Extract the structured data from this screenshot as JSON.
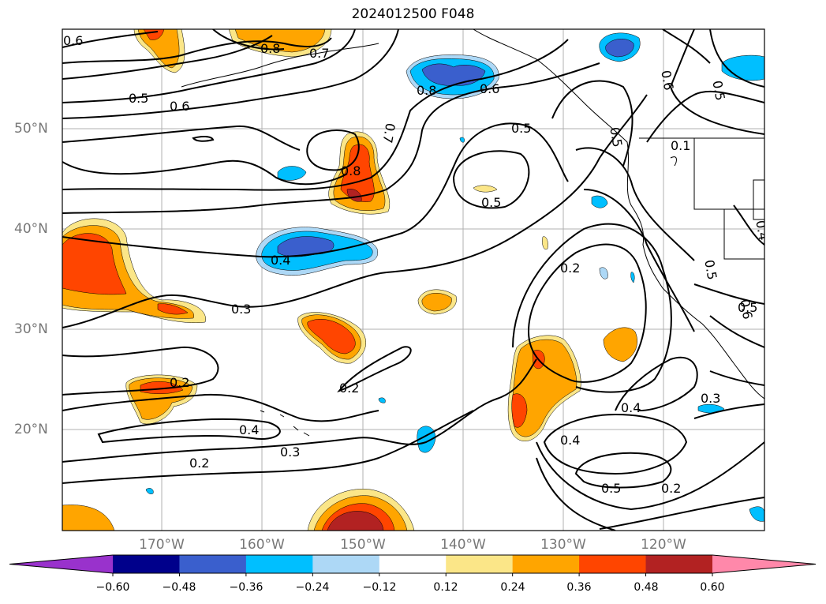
{
  "title": "2024012500 F048",
  "axes": {
    "lat_labels": [
      "50°N",
      "40°N",
      "30°N",
      "20°N"
    ],
    "lon_labels": [
      "170°W",
      "160°W",
      "150°W",
      "140°W",
      "130°W",
      "120°W"
    ]
  },
  "colorbar": {
    "levels": [
      -0.6,
      -0.48,
      -0.36,
      -0.24,
      -0.12,
      0.12,
      0.24,
      0.36,
      0.48,
      0.6
    ],
    "tick_labels": [
      "−0.60",
      "−0.48",
      "−0.36",
      "−0.24",
      "−0.12",
      "0.12",
      "0.24",
      "0.36",
      "0.48",
      "0.60"
    ],
    "colors": [
      "#9932cc",
      "#00008b",
      "#3a5fcd",
      "#00bfff",
      "#add8f6",
      "#ffffff",
      "#fbe688",
      "#ffa500",
      "#ff4500",
      "#b22222",
      "#ff88aa"
    ],
    "extend": "both"
  },
  "contour_labels": [
    "0.6",
    "0.8",
    "0.7",
    "0.5",
    "0.6",
    "0.8",
    "0.6",
    "0.6",
    "0.5",
    "0.5",
    "0.5",
    "0.7",
    "0.8",
    "0.5",
    "0.1",
    "0.4",
    "0.4",
    "0.2",
    "0.5",
    "0.6",
    "0.3",
    "0.2",
    "0.2",
    "0.4",
    "0.3",
    "0.2",
    "0.4",
    "0.5",
    "0.2",
    "0.3",
    "0.4",
    "0.5"
  ]
}
